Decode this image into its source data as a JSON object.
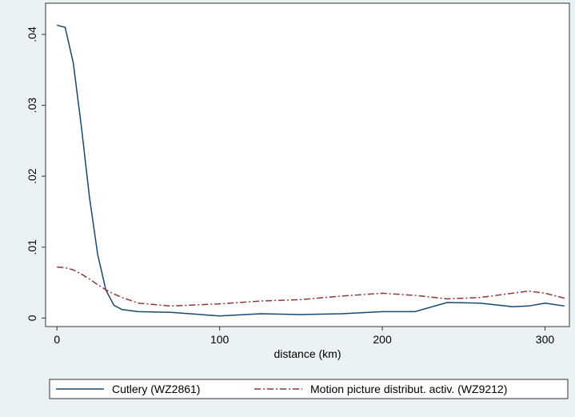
{
  "chart_data": {
    "type": "line",
    "x_label": "distance (km)",
    "x": [
      0,
      5,
      10,
      15,
      20,
      25,
      30,
      35,
      40,
      50,
      70,
      100,
      125,
      150,
      175,
      200,
      220,
      240,
      260,
      280,
      290,
      300,
      312
    ],
    "series": [
      {
        "name": "Cutlery (WZ2861)",
        "color": "#1a476f",
        "dash": "solid",
        "values": [
          0.0413,
          0.041,
          0.036,
          0.027,
          0.017,
          0.009,
          0.004,
          0.0018,
          0.0012,
          0.0009,
          0.0008,
          0.0003,
          0.0006,
          0.0005,
          0.0006,
          0.0009,
          0.0009,
          0.0022,
          0.0021,
          0.0016,
          0.0017,
          0.0021,
          0.0017
        ]
      },
      {
        "name": "Motion picture distribut. activ. (WZ9212)",
        "color": "#90353b",
        "dash": "dashdot",
        "values": [
          0.0072,
          0.0071,
          0.0068,
          0.0062,
          0.0055,
          0.0047,
          0.004,
          0.0034,
          0.0029,
          0.0021,
          0.0017,
          0.002,
          0.0024,
          0.0026,
          0.0031,
          0.0035,
          0.0032,
          0.0027,
          0.0029,
          0.0035,
          0.0038,
          0.0035,
          0.0028
        ]
      }
    ],
    "xlim": [
      -7,
      315
    ],
    "xticks": [
      0,
      100,
      200,
      300
    ],
    "ylim": [
      -0.0012,
      0.0444
    ],
    "yticks": [
      0,
      {
        "value": 0.01,
        "label": ".01"
      },
      {
        "value": 0.02,
        "label": ".02"
      },
      {
        "value": 0.03,
        "label": ".03"
      },
      {
        "value": 0.04,
        "label": ".04"
      }
    ],
    "grid": false,
    "legend": "bottom"
  }
}
